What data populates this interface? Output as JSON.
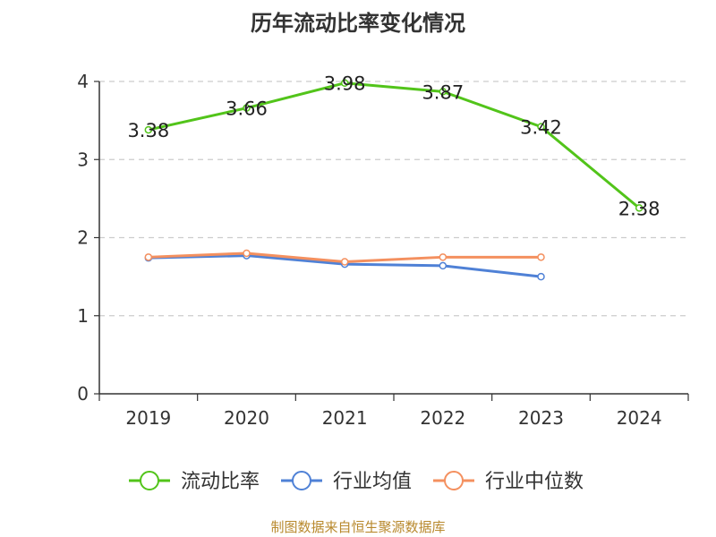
{
  "chart_data": {
    "type": "line",
    "title": "历年流动比率变化情况",
    "xlabel": "",
    "ylabel": "",
    "categories": [
      "2019",
      "2020",
      "2021",
      "2022",
      "2023",
      "2024"
    ],
    "ylim": [
      0,
      4
    ],
    "yticks": [
      0,
      1,
      2,
      3,
      4
    ],
    "grid": "horizontal dashed",
    "legend_position": "bottom",
    "series": [
      {
        "name": "流动比率",
        "color": "#52c41a",
        "values": [
          3.38,
          3.66,
          3.98,
          3.87,
          3.42,
          2.38
        ],
        "labels": [
          "3.38",
          "3.66",
          "3.98",
          "3.87",
          "3.42",
          "2.38"
        ]
      },
      {
        "name": "行业均值",
        "color": "#4f81d6",
        "values": [
          1.74,
          1.77,
          1.66,
          1.64,
          1.5,
          null
        ]
      },
      {
        "name": "行业中位数",
        "color": "#f4905f",
        "values": [
          1.75,
          1.8,
          1.69,
          1.75,
          1.75,
          null
        ]
      }
    ]
  },
  "source_note": "制图数据来自恒生聚源数据库"
}
